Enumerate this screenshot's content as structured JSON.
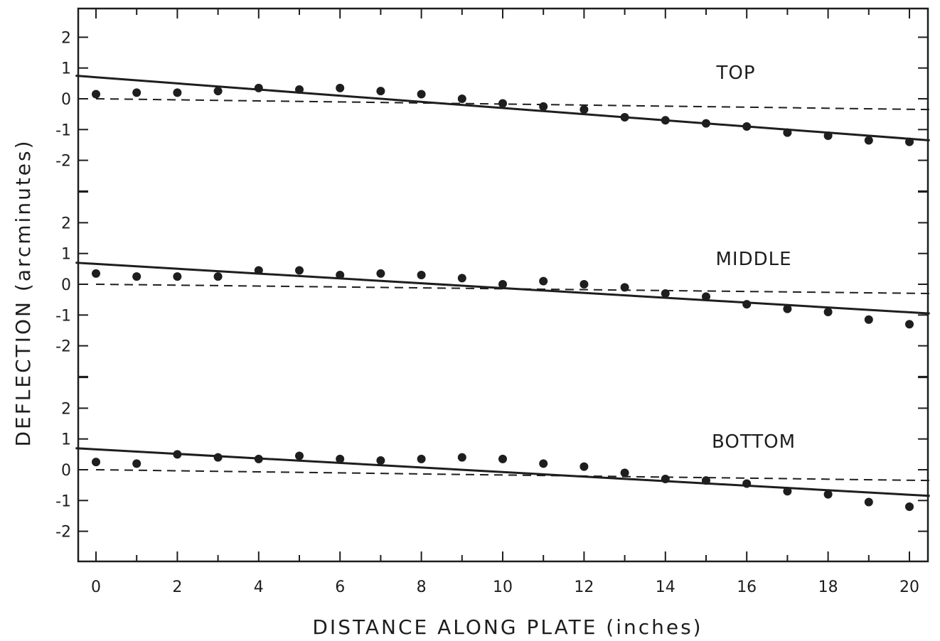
{
  "chart_data": {
    "type": "scatter",
    "xlabel": "DISTANCE ALONG PLATE (inches)",
    "ylabel": "DEFLECTION (arcminutes)",
    "xlim": [
      -0.5,
      20.5
    ],
    "x_ticks": [
      0,
      2,
      4,
      6,
      8,
      10,
      12,
      14,
      16,
      18,
      20
    ],
    "x_tick_labels": [
      "0",
      "2",
      "4",
      "6",
      "8",
      "10",
      "12",
      "14",
      "16",
      "18",
      "20"
    ],
    "y_ticks": [
      -2,
      -1,
      0,
      1,
      2
    ],
    "y_tick_labels": [
      "-2",
      "-1",
      "0",
      "1",
      "2"
    ],
    "panels": [
      {
        "label": "TOP",
        "ylim": [
          -3,
          3
        ],
        "x": [
          0,
          1,
          2,
          3,
          4,
          5,
          6,
          7,
          8,
          9,
          10,
          11,
          12,
          13,
          14,
          15,
          16,
          17,
          18,
          19,
          20
        ],
        "y": [
          0.15,
          0.2,
          0.2,
          0.25,
          0.35,
          0.3,
          0.35,
          0.25,
          0.15,
          0.0,
          -0.15,
          -0.25,
          -0.35,
          -0.6,
          -0.7,
          -0.8,
          -0.9,
          -1.1,
          -1.2,
          -1.35,
          -1.4
        ],
        "fit_line": [
          [
            -0.5,
            0.75
          ],
          [
            20.5,
            -1.35
          ]
        ],
        "reference_line": [
          [
            0,
            0.0
          ],
          [
            20.5,
            -0.35
          ]
        ]
      },
      {
        "label": "MIDDLE",
        "ylim": [
          -3,
          3
        ],
        "x": [
          0,
          1,
          2,
          3,
          4,
          5,
          6,
          7,
          8,
          9,
          10,
          11,
          12,
          13,
          14,
          15,
          16,
          17,
          18,
          19,
          20
        ],
        "y": [
          0.35,
          0.25,
          0.25,
          0.25,
          0.45,
          0.45,
          0.3,
          0.35,
          0.3,
          0.2,
          0.0,
          0.1,
          0.0,
          -0.1,
          -0.3,
          -0.4,
          -0.65,
          -0.8,
          -0.9,
          -1.15,
          -1.3
        ],
        "fit_line": [
          [
            -0.5,
            0.7
          ],
          [
            20.5,
            -0.95
          ]
        ],
        "reference_line": [
          [
            0,
            0.0
          ],
          [
            20.5,
            -0.3
          ]
        ]
      },
      {
        "label": "BOTTOM",
        "ylim": [
          -3,
          3
        ],
        "x": [
          0,
          1,
          2,
          3,
          4,
          5,
          6,
          7,
          8,
          9,
          10,
          11,
          12,
          13,
          14,
          15,
          16,
          17,
          18,
          19,
          20
        ],
        "y": [
          0.25,
          0.2,
          0.5,
          0.4,
          0.35,
          0.45,
          0.35,
          0.3,
          0.35,
          0.4,
          0.35,
          0.2,
          0.1,
          -0.1,
          -0.3,
          -0.35,
          -0.45,
          -0.7,
          -0.8,
          -1.05,
          -1.2
        ],
        "fit_line": [
          [
            -0.5,
            0.7
          ],
          [
            20.5,
            -0.85
          ]
        ],
        "reference_line": [
          [
            0,
            0.0
          ],
          [
            20.5,
            -0.35
          ]
        ]
      }
    ],
    "grid": false,
    "colors": {
      "ink": "#1e1e1e",
      "background": "#ffffff"
    }
  }
}
